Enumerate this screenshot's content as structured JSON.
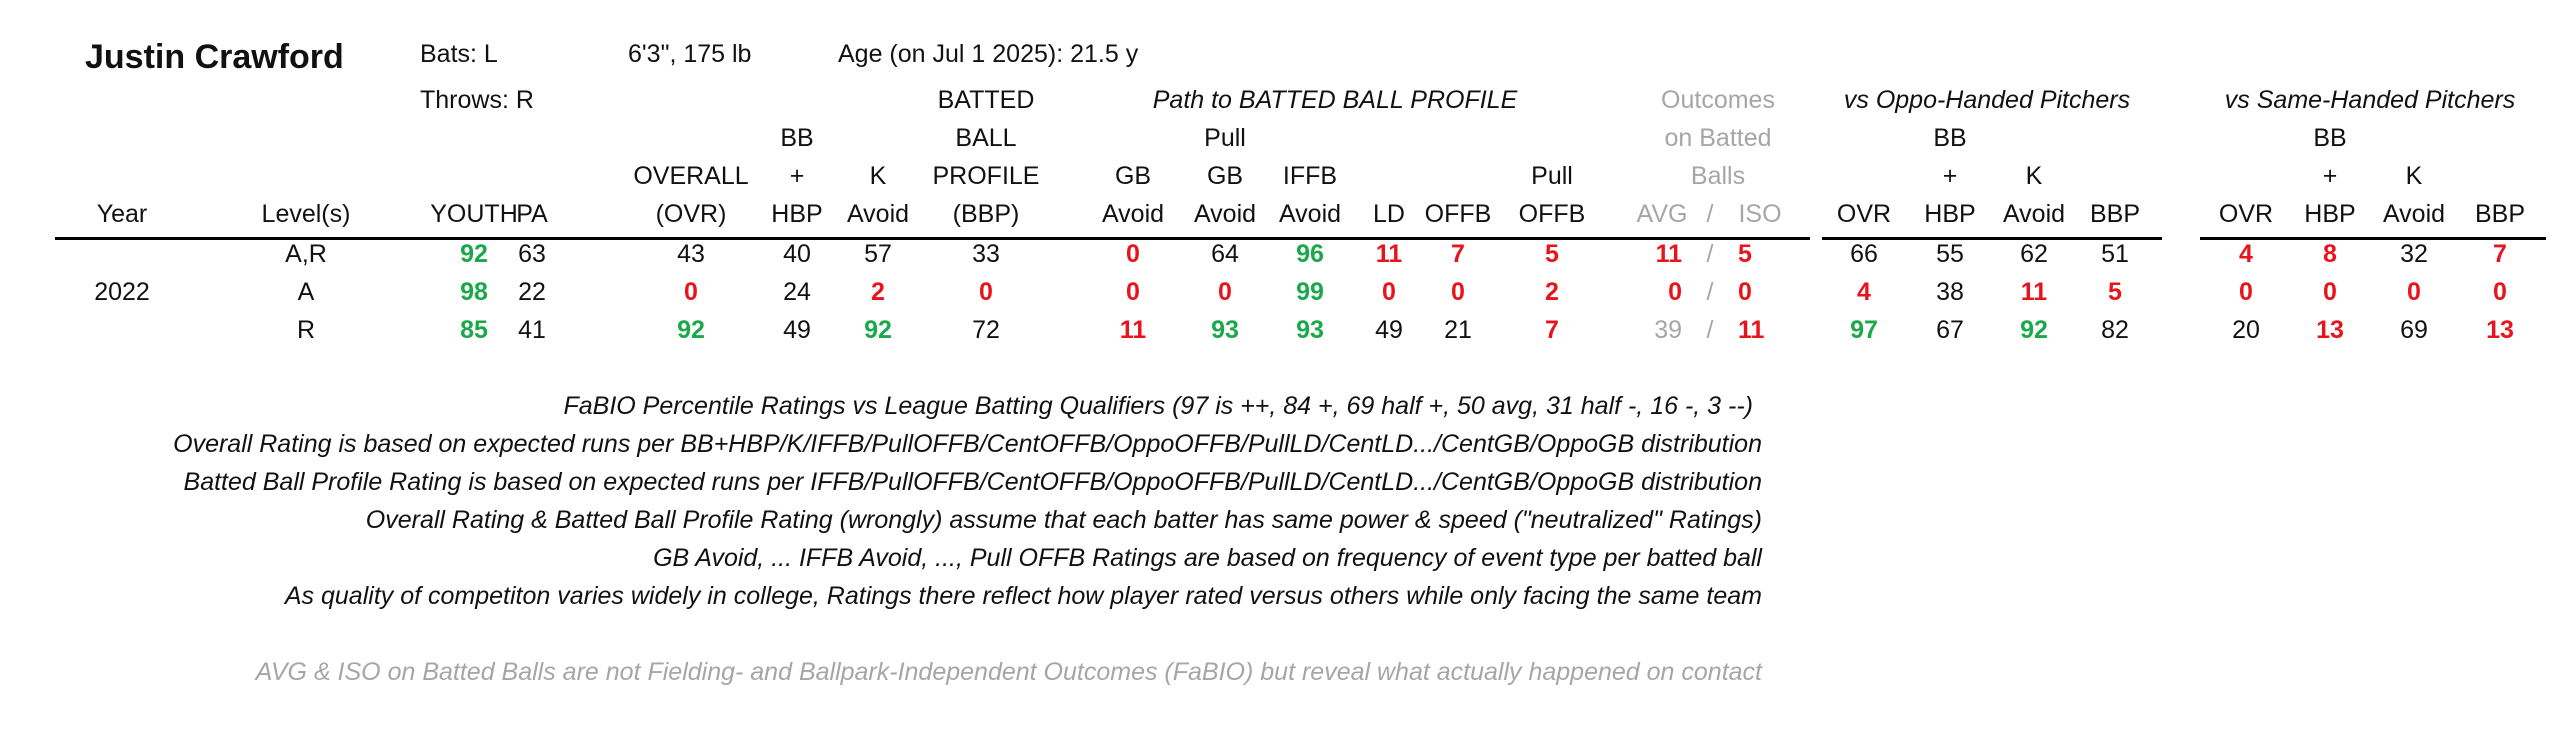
{
  "player": {
    "name": "Justin Crawford",
    "bats": "Bats: L",
    "throws": "Throws: R",
    "size": "6'3\", 175 lb",
    "age": "Age (on Jul 1 2025): 21.5 y"
  },
  "groups": {
    "path": "Path to BATTED BALL PROFILE",
    "outcomes_l1": "Outcomes",
    "outcomes_l2": "on Batted",
    "outcomes_l3": "Balls",
    "oppo": "vs Oppo-Handed Pitchers",
    "same": "vs Same-Handed Pitchers"
  },
  "headers": {
    "year": "Year",
    "levels": "Level(s)",
    "youth": "YOUTH",
    "pa": "PA",
    "overall_1": "OVERALL",
    "overall_2": "(OVR)",
    "bb_1": "BB",
    "bb_2": "+",
    "bb_3": "HBP",
    "k_1": "K",
    "k_2": "Avoid",
    "bbp_1": "BATTED",
    "bbp_2": "BALL",
    "bbp_3": "PROFILE",
    "bbp_4": "(BBP)",
    "gb_1": "GB",
    "gb_2": "Avoid",
    "pullgb_1": "Pull",
    "pullgb_2": "GB",
    "pullgb_3": "Avoid",
    "iffb_1": "IFFB",
    "iffb_2": "Avoid",
    "ld": "LD",
    "offb": "OFFB",
    "pulloffb_1": "Pull",
    "pulloffb_2": "OFFB",
    "avg": "AVG",
    "slash": "/",
    "iso": "ISO",
    "o_ovr": "OVR",
    "o_bb_1": "BB",
    "o_bb_2": "+",
    "o_bb_3": "HBP",
    "o_k_1": "K",
    "o_k_2": "Avoid",
    "o_bbp": "BBP",
    "s_ovr": "OVR",
    "s_bb_1": "BB",
    "s_bb_2": "+",
    "s_bb_3": "HBP",
    "s_k_1": "K",
    "s_k_2": "Avoid",
    "s_bbp": "BBP"
  },
  "colors": {
    "good": "#1aa84a",
    "bad": "#e8141b",
    "muted": "#a6a6a6"
  },
  "rows": [
    {
      "year": "",
      "levels": "A,R",
      "youth": "92",
      "pa": "63",
      "ovr": "43",
      "bb": "40",
      "k": "57",
      "bbp": "33",
      "gb": "0",
      "pullgb": "64",
      "iffb": "96",
      "ld": "11",
      "offb": "7",
      "pulloffb": "5",
      "avg": "11",
      "iso": "5",
      "o_ovr": "66",
      "o_bb": "55",
      "o_k": "62",
      "o_bbp": "51",
      "s_ovr": "4",
      "s_bb": "8",
      "s_k": "32",
      "s_bbp": "7"
    },
    {
      "year": "2022",
      "levels": "A",
      "youth": "98",
      "pa": "22",
      "ovr": "0",
      "bb": "24",
      "k": "2",
      "bbp": "0",
      "gb": "0",
      "pullgb": "0",
      "iffb": "99",
      "ld": "0",
      "offb": "0",
      "pulloffb": "2",
      "avg": "0",
      "iso": "0",
      "o_ovr": "4",
      "o_bb": "38",
      "o_k": "11",
      "o_bbp": "5",
      "s_ovr": "0",
      "s_bb": "0",
      "s_k": "0",
      "s_bbp": "0"
    },
    {
      "year": "",
      "levels": "R",
      "youth": "85",
      "pa": "41",
      "ovr": "92",
      "bb": "49",
      "k": "92",
      "bbp": "72",
      "gb": "11",
      "pullgb": "93",
      "iffb": "93",
      "ld": "49",
      "offb": "21",
      "pulloffb": "7",
      "avg": "39",
      "iso": "11",
      "o_ovr": "97",
      "o_bb": "67",
      "o_k": "92",
      "o_bbp": "82",
      "s_ovr": "20",
      "s_bb": "13",
      "s_k": "69",
      "s_bbp": "13"
    }
  ],
  "notes": [
    "FaBIO Percentile Ratings vs League Batting Qualifiers (97 is ++, 84 +, 69 half +, 50 avg, 31 half -, 16 -, 3 --)",
    "Overall Rating is based on expected runs per BB+HBP/K/IFFB/PullOFFB/CentOFFB/OppoOFFB/PullLD/CentLD.../CentGB/OppoGB distribution",
    "Batted Ball Profile Rating is based on expected runs per IFFB/PullOFFB/CentOFFB/OppoOFFB/PullLD/CentLD.../CentGB/OppoGB distribution",
    "Overall Rating & Batted Ball Profile Rating (wrongly) assume that each batter has same power & speed (\"neutralized\" Ratings)",
    "GB Avoid, ... IFFB Avoid, ..., Pull OFFB Ratings are based on frequency of event type per batted ball",
    "As quality of competiton varies widely in college, Ratings there reflect how player rated versus others while only facing the same team"
  ],
  "footer_note": "AVG & ISO on Batted Balls are not Fielding- and Ballpark-Independent Outcomes (FaBIO) but reveal what actually happened on contact"
}
